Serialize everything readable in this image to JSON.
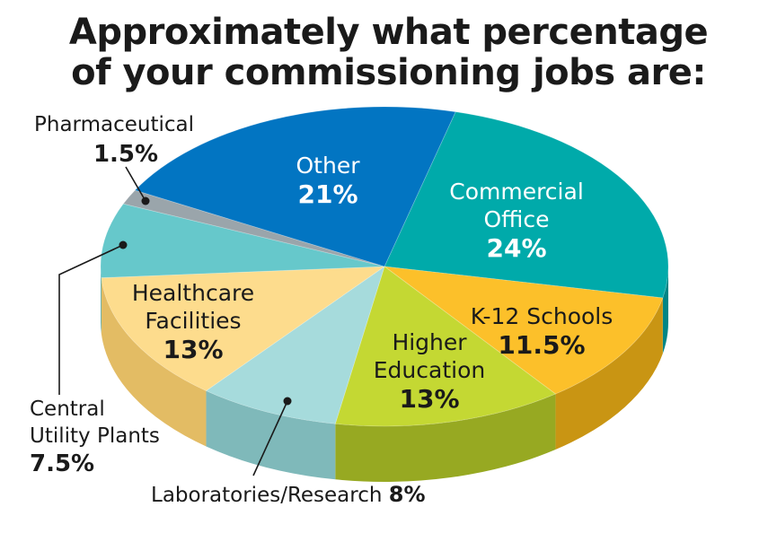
{
  "chart_data": {
    "type": "pie",
    "title_lines": [
      "Approximately what percentage",
      "of your commissioning jobs are:"
    ],
    "slices": [
      {
        "name_lines": [
          "Commercial",
          "Office"
        ],
        "value": 24,
        "value_label": "24%",
        "color": "#00aaaa",
        "side_color": "#008585"
      },
      {
        "name_lines": [
          "K-12 Schools"
        ],
        "value": 11.5,
        "value_label": "11.5%",
        "color": "#fcc02a",
        "side_color": "#c99513"
      },
      {
        "name_lines": [
          "Higher",
          "Education"
        ],
        "value": 13,
        "value_label": "13%",
        "color": "#c4d833",
        "side_color": "#97a922"
      },
      {
        "name_lines": [
          "Laboratories/Research"
        ],
        "value": 8,
        "value_label": "8%",
        "color": "#a6dbdc",
        "side_color": "#7fb9ba"
      },
      {
        "name_lines": [
          "Healthcare",
          "Facilities"
        ],
        "value": 13,
        "value_label": "13%",
        "color": "#fddc8d",
        "side_color": "#e3bc64"
      },
      {
        "name_lines": [
          "Central",
          "Utility Plants"
        ],
        "value": 7.5,
        "value_label": "7.5%",
        "color": "#66c8cb",
        "side_color": "#4aa7aa"
      },
      {
        "name_lines": [
          "Pharmaceutical"
        ],
        "value": 1.5,
        "value_label": "1.5%",
        "color": "#9aa5ab",
        "side_color": "#7a858b"
      },
      {
        "name_lines": [
          "Other"
        ],
        "value": 21,
        "value_label": "21%",
        "color": "#0275c2",
        "side_color": "#015a97"
      }
    ]
  }
}
